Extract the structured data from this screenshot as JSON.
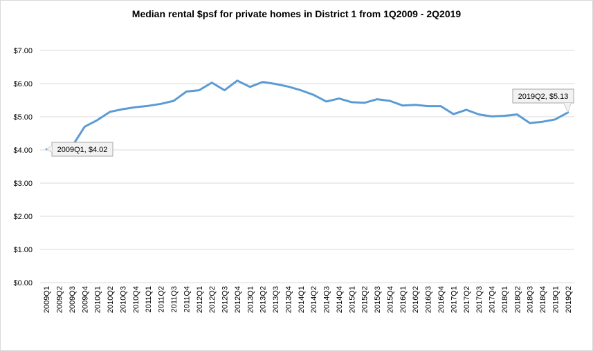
{
  "chart_data": {
    "type": "line",
    "title": "Median rental $psf for private homes in District 1 from 1Q2009 - 2Q2019",
    "xlabel": "",
    "ylabel": "",
    "ylim": [
      0,
      7
    ],
    "y_ticks": [
      0,
      1,
      2,
      3,
      4,
      5,
      6,
      7
    ],
    "y_tick_labels": [
      "$0.00",
      "$1.00",
      "$2.00",
      "$3.00",
      "$4.00",
      "$5.00",
      "$6.00",
      "$7.00"
    ],
    "grid": "horizontal",
    "legend": "none",
    "line_color": "#5b9bd5",
    "categories": [
      "2009Q1",
      "2009Q2",
      "2009Q3",
      "2009Q4",
      "2010Q1",
      "2010Q2",
      "2010Q3",
      "2010Q4",
      "2011Q1",
      "2011Q2",
      "2011Q3",
      "2011Q4",
      "2012Q1",
      "2012Q2",
      "2012Q3",
      "2012Q4",
      "2013Q1",
      "2013Q2",
      "2013Q3",
      "2013Q4",
      "2014Q1",
      "2014Q2",
      "2014Q3",
      "2014Q4",
      "2015Q1",
      "2015Q2",
      "2015Q3",
      "2015Q4",
      "2016Q1",
      "2016Q2",
      "2016Q3",
      "2016Q4",
      "2017Q1",
      "2017Q2",
      "2017Q3",
      "2017Q4",
      "2018Q1",
      "2018Q2",
      "2018Q3",
      "2018Q4",
      "2019Q1",
      "2019Q2"
    ],
    "series": [
      {
        "values": [
          4.02,
          4.05,
          4.1,
          4.7,
          4.9,
          5.15,
          5.23,
          5.29,
          5.33,
          5.39,
          5.48,
          5.76,
          5.8,
          6.03,
          5.8,
          6.09,
          5.9,
          6.05,
          5.99,
          5.91,
          5.8,
          5.66,
          5.46,
          5.55,
          5.44,
          5.42,
          5.53,
          5.48,
          5.34,
          5.36,
          5.32,
          5.32,
          5.08,
          5.21,
          5.07,
          5.01,
          5.03,
          5.07,
          4.81,
          4.85,
          4.92,
          5.13
        ]
      }
    ],
    "annotations": [
      {
        "index": 0,
        "text": "2009Q1, $4.02"
      },
      {
        "index": 41,
        "text": "2019Q2, $5.13"
      }
    ]
  }
}
